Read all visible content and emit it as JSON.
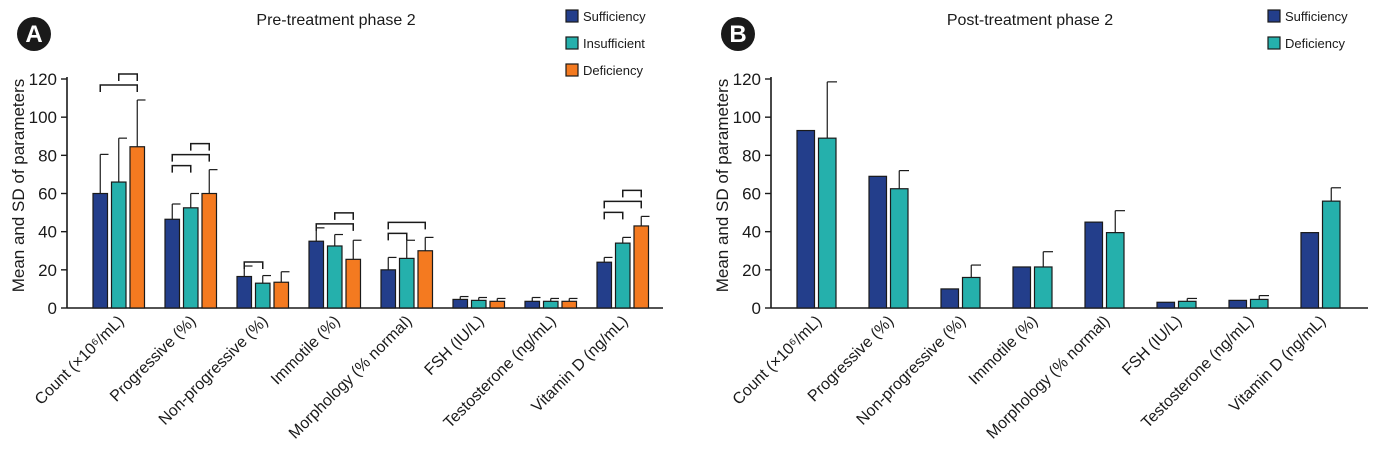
{
  "chart_data": [
    {
      "type": "bar",
      "panel_label": "A",
      "title": "Pre-treatment phase 2",
      "ylabel": "Mean and SD of parameters",
      "ylim": [
        0,
        120
      ],
      "yticks": [
        0,
        20,
        40,
        60,
        80,
        100,
        120
      ],
      "categories": [
        "Count (×10⁶/mL)",
        "Progressive (%)",
        "Non-progressive (%)",
        "Immotile (%)",
        "Morphology (% normal)",
        "FSH (IU/L)",
        "Testosterone (ng/mL)",
        "Vitamin D (ng/mL)"
      ],
      "series": [
        {
          "name": "Sufficiency",
          "color": "#233e8b",
          "values": [
            60,
            46.5,
            16.5,
            35,
            20,
            4.5,
            3.5,
            24
          ],
          "sd": [
            20.5,
            8,
            5.5,
            7,
            6.5,
            1.5,
            2,
            2.5
          ]
        },
        {
          "name": "Insufficient",
          "color": "#25b0ac",
          "values": [
            66,
            52.5,
            13,
            32.5,
            26,
            4,
            3.5,
            34
          ],
          "sd": [
            23,
            7.5,
            4,
            6,
            9.5,
            1.5,
            1.5,
            3
          ]
        },
        {
          "name": "Deficiency",
          "color": "#f47a20",
          "values": [
            84.5,
            60,
            13.5,
            25.5,
            30,
            3.5,
            3.5,
            43
          ],
          "sd": [
            24.5,
            12.5,
            5.5,
            10,
            7,
            1.5,
            1.5,
            5
          ]
        }
      ],
      "brackets": [
        {
          "cat": 0,
          "from": 0,
          "to": 2,
          "level": 1
        },
        {
          "cat": 0,
          "from": 1,
          "to": 2,
          "level": 2
        },
        {
          "cat": 1,
          "from": 0,
          "to": 1,
          "level": 0
        },
        {
          "cat": 1,
          "from": 0,
          "to": 2,
          "level": 1
        },
        {
          "cat": 1,
          "from": 1,
          "to": 2,
          "level": 2
        },
        {
          "cat": 2,
          "from": 0,
          "to": 1,
          "level": 0
        },
        {
          "cat": 3,
          "from": 0,
          "to": 2,
          "level": 0
        },
        {
          "cat": 3,
          "from": 1,
          "to": 2,
          "level": 1
        },
        {
          "cat": 4,
          "from": 0,
          "to": 1,
          "level": 0
        },
        {
          "cat": 4,
          "from": 0,
          "to": 2,
          "level": 1
        },
        {
          "cat": 7,
          "from": 0,
          "to": 1,
          "level": 0
        },
        {
          "cat": 7,
          "from": 0,
          "to": 2,
          "level": 1
        },
        {
          "cat": 7,
          "from": 1,
          "to": 2,
          "level": 2
        }
      ],
      "legend_position": "top-right",
      "grid": false
    },
    {
      "type": "bar",
      "panel_label": "B",
      "title": "Post-treatment phase 2",
      "ylabel": "Mean and SD of parameters",
      "ylim": [
        0,
        120
      ],
      "yticks": [
        0,
        20,
        40,
        60,
        80,
        100,
        120
      ],
      "categories": [
        "Count (×10⁶/mL)",
        "Progressive (%)",
        "Non-progressive (%)",
        "Immotile (%)",
        "Morphology (% normal)",
        "FSH (IU/L)",
        "Testosterone (ng/mL)",
        "Vitamin D (ng/mL)"
      ],
      "series": [
        {
          "name": "Sufficiency",
          "color": "#233e8b",
          "values": [
            93,
            69,
            10,
            21.5,
            45,
            3,
            4,
            39.5
          ],
          "sd": [
            0,
            0,
            0,
            0,
            0,
            0,
            0,
            0
          ]
        },
        {
          "name": "Deficiency",
          "color": "#25b0ac",
          "values": [
            89,
            62.5,
            16,
            21.5,
            39.5,
            3.5,
            4.5,
            56
          ],
          "sd": [
            29.5,
            9.5,
            6.5,
            8,
            11.5,
            1.5,
            2,
            7
          ]
        }
      ],
      "legend_position": "top-right",
      "grid": false
    }
  ]
}
